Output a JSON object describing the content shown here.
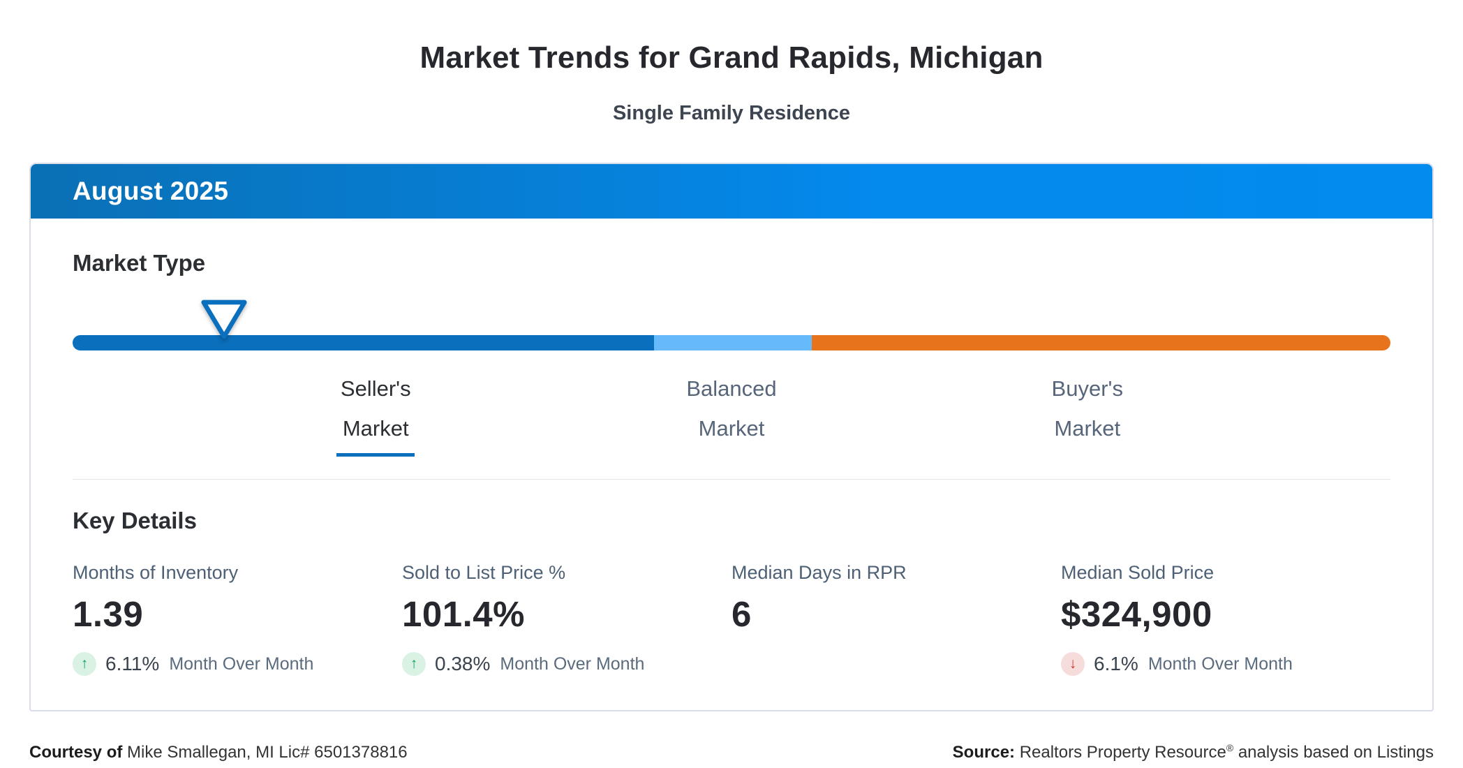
{
  "page": {
    "title": "Market Trends for Grand Rapids, Michigan",
    "subtitle": "Single Family Residence"
  },
  "panel": {
    "period": "August 2025"
  },
  "market_type": {
    "heading": "Market Type",
    "current_selection": "Seller's Market",
    "marker_position_pct": 11.5,
    "segments": [
      {
        "name": "sellers-zone",
        "color": "#0a6fbc",
        "width_pct": 44.1
      },
      {
        "name": "balanced-zone",
        "color": "#66bafb",
        "width_pct": 12.0
      },
      {
        "name": "buyers-zone",
        "color": "#e8731d",
        "width_pct": 43.9
      }
    ],
    "labels": [
      {
        "line1": "Seller's",
        "line2": "Market",
        "active": true,
        "position_pct": 23
      },
      {
        "line1": "Balanced",
        "line2": "Market",
        "active": false,
        "position_pct": 50
      },
      {
        "line1": "Buyer's",
        "line2": "Market",
        "active": false,
        "position_pct": 77
      }
    ]
  },
  "key_details": {
    "heading": "Key Details",
    "stats": [
      {
        "label": "Months of Inventory",
        "value": "1.39",
        "change": {
          "direction": "up",
          "percent": "6.11%",
          "caption": "Month Over Month"
        }
      },
      {
        "label": "Sold to List Price %",
        "value": "101.4%",
        "change": {
          "direction": "up",
          "percent": "0.38%",
          "caption": "Month Over Month"
        }
      },
      {
        "label": "Median Days in RPR",
        "value": "6",
        "change": null
      },
      {
        "label": "Median Sold Price",
        "value": "$324,900",
        "change": {
          "direction": "down",
          "percent": "6.1%",
          "caption": "Month Over Month"
        }
      }
    ]
  },
  "footer": {
    "courtesy_label": "Courtesy of",
    "courtesy_text": " Mike Smallegan, MI Lic# 6501378816",
    "source_label": "Source:",
    "source_text": " Realtors Property Resource",
    "source_reg": "®",
    "source_suffix": " analysis based on Listings"
  },
  "icons": {
    "up_arrow": "↑",
    "down_arrow": "↓"
  },
  "colors": {
    "header_gradient_start": "#0a70b5",
    "header_gradient_end": "#028ced",
    "seller_blue": "#0a6fbc",
    "balanced_light_blue": "#66bafb",
    "buyer_orange": "#e8731d",
    "positive_green": "#18a05e",
    "positive_green_bg": "#d9f2e4",
    "negative_red": "#c43a30",
    "negative_red_bg": "#f6dcda"
  }
}
